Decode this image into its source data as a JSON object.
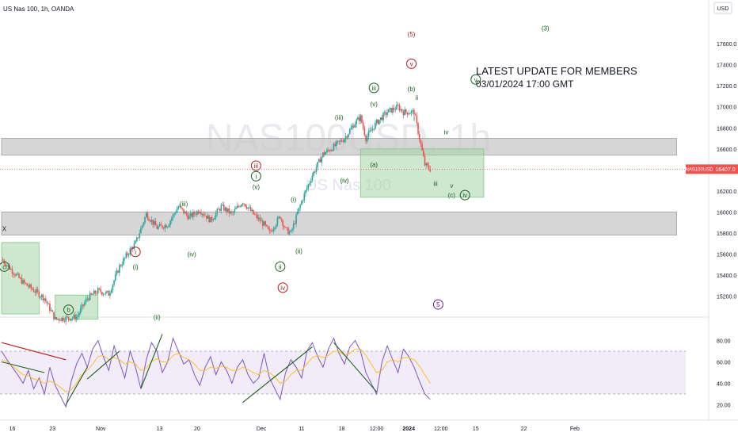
{
  "header": {
    "symbol_line": "US Nas 100, 1h, OANDA",
    "currency": "USD",
    "watermark_symbol": "NAS100USD, 1h",
    "watermark_name": "US Nas 100"
  },
  "update_note": {
    "line1": "LATEST UPDATE FOR MEMBERS",
    "line2": "03/01/2024 17:00 GMT"
  },
  "price_tag": {
    "symbol": "NAS100USD",
    "value": "16407.0"
  },
  "colors": {
    "up": "#26a69a",
    "down": "#ef5350",
    "wave_green": "#1b5e20",
    "wave_red": "#b71c1c",
    "wave_purple": "#6a1b9a",
    "zone_grey": "#c8c8c8",
    "zone_green": "#a5d6a7",
    "rsi_line": "#7e57c2",
    "rsi_ma": "#fbc02d",
    "rsi_band": "#ede7f6"
  },
  "chart_data": [
    {
      "type": "candlestick",
      "title": "US Nas 100, 1h, OANDA",
      "ylabel": "USD",
      "ylim": [
        15000,
        17850
      ],
      "y_ticks": [
        15200,
        15400,
        15600,
        15800,
        16000,
        16200,
        16400,
        16600,
        16800,
        17000,
        17200,
        17400,
        17600
      ],
      "x_ticks": [
        "16",
        "23",
        "Nov",
        "13",
        "20",
        "Dec",
        "11",
        "18",
        "12:00",
        "2024",
        "12:00",
        "15",
        "22",
        "Feb"
      ],
      "last_price": 16407.0,
      "price_path": [
        [
          0,
          15550
        ],
        [
          4,
          15330
        ],
        [
          8,
          15180
        ],
        [
          10,
          14980
        ],
        [
          14,
          15000
        ],
        [
          16,
          15180
        ],
        [
          18,
          15250
        ],
        [
          20,
          15220
        ],
        [
          22,
          15480
        ],
        [
          24,
          15640
        ],
        [
          25,
          15700
        ],
        [
          27,
          15980
        ],
        [
          29,
          15850
        ],
        [
          31,
          15880
        ],
        [
          33,
          16050
        ],
        [
          35,
          15950
        ],
        [
          37,
          16020
        ],
        [
          39,
          15920
        ],
        [
          41,
          16050
        ],
        [
          43,
          15980
        ],
        [
          45,
          16100
        ],
        [
          47,
          15980
        ],
        [
          49,
          15880
        ],
        [
          50,
          15800
        ],
        [
          52,
          15960
        ],
        [
          53,
          15830
        ],
        [
          54,
          15800
        ],
        [
          56,
          16100
        ],
        [
          58,
          16350
        ],
        [
          60,
          16550
        ],
        [
          62,
          16620
        ],
        [
          64,
          16700
        ],
        [
          66,
          16850
        ],
        [
          67,
          16900
        ],
        [
          68,
          16700
        ],
        [
          70,
          16850
        ],
        [
          72,
          16950
        ],
        [
          74,
          17000
        ],
        [
          75,
          16950
        ],
        [
          77,
          16950
        ],
        [
          78,
          16700
        ],
        [
          79,
          16450
        ],
        [
          80,
          16407
        ]
      ],
      "zones": [
        {
          "kind": "resistance",
          "color": "grey",
          "from_x": 0,
          "to_x": 126,
          "low": 16540,
          "high": 16700
        },
        {
          "kind": "support",
          "color": "grey",
          "from_x": 0,
          "to_x": 126,
          "low": 15780,
          "high": 16000
        },
        {
          "kind": "target",
          "color": "green",
          "from_x": 67,
          "to_x": 90,
          "low": 16140,
          "high": 16600
        },
        {
          "kind": "target",
          "color": "green",
          "from_x": 0,
          "to_x": 7,
          "low": 15030,
          "high": 15710
        },
        {
          "kind": "target",
          "color": "green",
          "from_x": 10,
          "to_x": 18,
          "low": 14980,
          "high": 15210
        }
      ],
      "wave_labels": [
        {
          "text": "X",
          "x": 0.5,
          "y": 15840,
          "style": "plain",
          "color": "dark"
        },
        {
          "text": "c",
          "x": 0.5,
          "y": 15480,
          "style": "circle",
          "color": "green"
        },
        {
          "text": "b",
          "x": 12.5,
          "y": 15070,
          "style": "circle",
          "color": "green"
        },
        {
          "text": "i",
          "x": 25,
          "y": 15620,
          "style": "circle",
          "color": "red"
        },
        {
          "text": "(i)",
          "x": 25,
          "y": 15480,
          "style": "plain",
          "color": "green"
        },
        {
          "text": "(ii)",
          "x": 29,
          "y": 15000,
          "style": "plain",
          "color": "green"
        },
        {
          "text": "(iii)",
          "x": 34,
          "y": 16080,
          "style": "plain",
          "color": "green"
        },
        {
          "text": "(iv)",
          "x": 35.5,
          "y": 15600,
          "style": "plain",
          "color": "green"
        },
        {
          "text": "i",
          "x": 47.5,
          "y": 16340,
          "style": "circle",
          "color": "green"
        },
        {
          "text": "(v)",
          "x": 47.5,
          "y": 16240,
          "style": "plain",
          "color": "green"
        },
        {
          "text": "iii",
          "x": 47.5,
          "y": 16440,
          "style": "circle",
          "color": "red"
        },
        {
          "text": "ii",
          "x": 52,
          "y": 15480,
          "style": "circle",
          "color": "green"
        },
        {
          "text": "(ii)",
          "x": 55.5,
          "y": 15630,
          "style": "plain",
          "color": "green"
        },
        {
          "text": "(i)",
          "x": 54.5,
          "y": 16120,
          "style": "plain",
          "color": "green"
        },
        {
          "text": "iv",
          "x": 52.5,
          "y": 15280,
          "style": "circle",
          "color": "red"
        },
        {
          "text": "(iv)",
          "x": 64,
          "y": 16300,
          "style": "plain",
          "color": "green"
        },
        {
          "text": "(iii)",
          "x": 63,
          "y": 16900,
          "style": "plain",
          "color": "green"
        },
        {
          "text": "(a)",
          "x": 69.5,
          "y": 16450,
          "style": "plain",
          "color": "green"
        },
        {
          "text": "iii",
          "x": 69.5,
          "y": 17180,
          "style": "circle",
          "color": "green"
        },
        {
          "text": "(v)",
          "x": 69.5,
          "y": 17030,
          "style": "plain",
          "color": "green"
        },
        {
          "text": "(b)",
          "x": 76.5,
          "y": 17170,
          "style": "plain",
          "color": "green"
        },
        {
          "text": "ii",
          "x": 77.5,
          "y": 17090,
          "style": "plain",
          "color": "green"
        },
        {
          "text": "5",
          "x": 76.5,
          "y": 17690,
          "style": "plain",
          "color": "red"
        },
        {
          "text": "v",
          "x": 76.5,
          "y": 17410,
          "style": "circle",
          "color": "red"
        },
        {
          "text": "i",
          "x": 77,
          "y": 16890,
          "style": "plain",
          "color": "green"
        },
        {
          "text": "iv",
          "x": 83,
          "y": 16760,
          "style": "plain",
          "color": "green"
        },
        {
          "text": "iii",
          "x": 81,
          "y": 16270,
          "style": "plain",
          "color": "green"
        },
        {
          "text": "v",
          "x": 84,
          "y": 16250,
          "style": "plain",
          "color": "green"
        },
        {
          "text": "(c)",
          "x": 84,
          "y": 16160,
          "style": "plain",
          "color": "green"
        },
        {
          "text": "iv",
          "x": 86.5,
          "y": 16160,
          "style": "circle",
          "color": "green"
        },
        {
          "text": "v",
          "x": 88.5,
          "y": 17260,
          "style": "circle",
          "color": "green"
        },
        {
          "text": "(3)",
          "x": 101.5,
          "y": 17750,
          "style": "plain",
          "color": "green"
        },
        {
          "text": "5",
          "x": 81.5,
          "y": 15120,
          "style": "circle",
          "color": "purple"
        }
      ]
    },
    {
      "type": "line",
      "title": "RSI",
      "ylim": [
        10,
        90
      ],
      "y_ticks": [
        20,
        40,
        60,
        80
      ],
      "band": [
        30,
        70
      ],
      "series": [
        {
          "values": [
            70,
            62,
            55,
            48,
            40,
            52,
            35,
            45,
            30,
            55,
            38,
            28,
            18,
            42,
            58,
            68,
            55,
            72,
            80,
            65,
            52,
            75,
            60,
            45,
            70,
            55,
            35,
            62,
            78,
            70,
            50,
            60,
            82,
            70,
            58,
            62,
            48,
            38,
            55,
            65,
            48,
            60,
            52,
            40,
            55,
            62,
            48,
            40,
            45,
            68,
            45,
            35,
            25,
            50,
            62,
            55,
            45,
            70,
            78,
            65,
            55,
            72,
            82,
            68,
            58,
            74,
            80,
            70,
            50,
            40,
            30,
            60,
            75,
            62,
            50,
            72,
            65,
            55,
            42,
            30,
            25
          ]
        },
        {
          "values": [
            62,
            60,
            56,
            52,
            48,
            47,
            44,
            43,
            40,
            42,
            40,
            36,
            32,
            34,
            40,
            48,
            52,
            58,
            65,
            66,
            62,
            64,
            62,
            58,
            60,
            58,
            52,
            54,
            60,
            63,
            60,
            60,
            66,
            68,
            64,
            62,
            58,
            52,
            52,
            55,
            54,
            56,
            55,
            52,
            52,
            55,
            53,
            50,
            48,
            52,
            50,
            46,
            40,
            42,
            48,
            52,
            52,
            58,
            64,
            66,
            64,
            66,
            70,
            70,
            66,
            68,
            72,
            72,
            66,
            58,
            50,
            52,
            60,
            62,
            60,
            64,
            64,
            62,
            56,
            48,
            40
          ]
        }
      ],
      "trendlines": [
        {
          "from": [
            0,
            78
          ],
          "to": [
            12,
            62
          ]
        },
        {
          "from": [
            0,
            60
          ],
          "to": [
            8,
            50
          ]
        },
        {
          "from": [
            12,
            20
          ],
          "to": [
            16,
            55
          ]
        },
        {
          "from": [
            16,
            44
          ],
          "to": [
            22,
            70
          ]
        },
        {
          "from": [
            26,
            35
          ],
          "to": [
            30,
            86
          ]
        },
        {
          "from": [
            45,
            22
          ],
          "to": [
            58,
            74
          ]
        },
        {
          "from": [
            62,
            78
          ],
          "to": [
            70,
            32
          ]
        }
      ]
    }
  ]
}
